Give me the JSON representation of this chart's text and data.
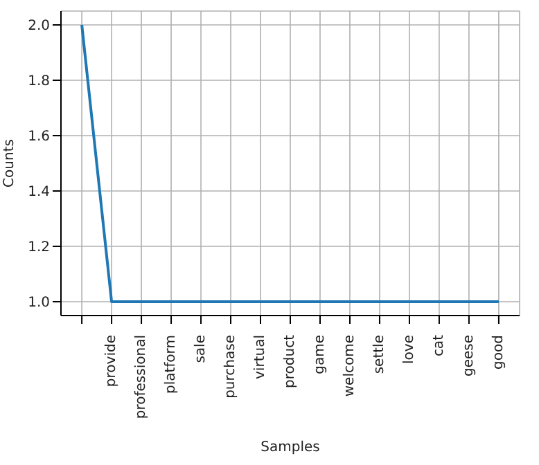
{
  "chart_data": {
    "type": "line",
    "xlabel": "Samples",
    "ylabel": "Counts",
    "categories": [
      null,
      "provide",
      "professional",
      "platform",
      "sale",
      "purchase",
      "virtual",
      "product",
      "game",
      "welcome",
      "settle",
      "love",
      "cat",
      "geese",
      "good"
    ],
    "series": [
      {
        "color": "#1f77b4",
        "values": [
          2,
          1,
          1,
          1,
          1,
          1,
          1,
          1,
          1,
          1,
          1,
          1,
          1,
          1,
          1
        ]
      }
    ],
    "ylim": [
      0.95,
      2.05
    ],
    "yticks": [
      {
        "value": 1,
        "label": "1.0"
      },
      1.2,
      1.4,
      1.6,
      1.8,
      {
        "value": 2,
        "label": "2.0"
      }
    ],
    "grid": true,
    "legend": false,
    "marker": "none",
    "line_style": "solid"
  }
}
